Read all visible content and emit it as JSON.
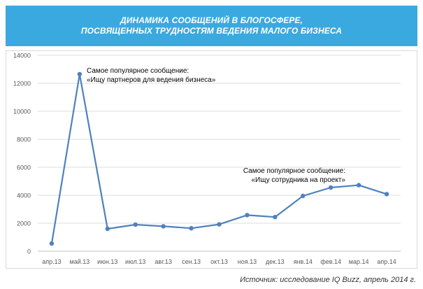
{
  "header": {
    "line1": "ДИНАМИКА СООБЩЕНИЙ В БЛОГОСФЕРЕ,",
    "line2": "ПОСВЯЩЕННЫХ ТРУДНОСТЯМ ВЕДЕНИЯ МАЛОГО БИЗНЕСА",
    "bg_color": "#3aa9e0"
  },
  "source_text": "Источник: исследование IQ Buzz, апрель 2014 г.",
  "chart_data": {
    "type": "line",
    "title": "ДИНАМИКА СООБЩЕНИЙ В БЛОГОСФЕРЕ, ПОСВЯЩЕННЫХ ТРУДНОСТЯМ ВЕДЕНИЯ МАЛОГО БИЗНЕСА",
    "categories": [
      "апр.13",
      "май.13",
      "июн.13",
      "июл.13",
      "авг.13",
      "сен.13",
      "окт.13",
      "ноя.13",
      "дек.13",
      "янв.14",
      "фев.14",
      "мар.14",
      "апр.14"
    ],
    "series": [
      {
        "values": [
          550,
          12650,
          1600,
          1900,
          1780,
          1640,
          1920,
          2580,
          2440,
          3950,
          4550,
          4720,
          4080
        ],
        "color": "#4f81bd"
      }
    ],
    "y_ticks": [
      0,
      2000,
      4000,
      6000,
      8000,
      10000,
      12000,
      14000
    ],
    "ylim": [
      0,
      14000
    ],
    "grid": true,
    "annotations": [
      {
        "line1": "Самое популярное сообщение:",
        "line2": "«Ищу партнеров для ведения бизнеса»",
        "point_index": 1
      },
      {
        "line1": "Самое популярное сообщение:",
        "line2": "«Ищу сотрудника на проект»",
        "point_index": 9
      }
    ]
  }
}
